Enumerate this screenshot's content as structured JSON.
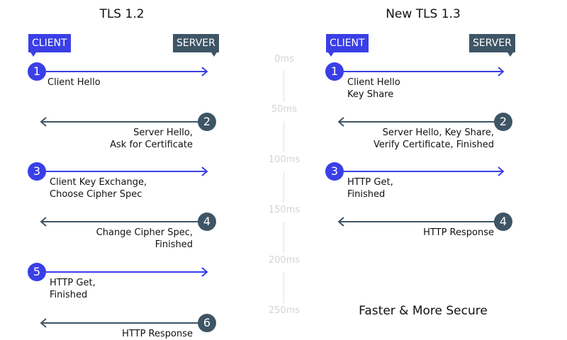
{
  "colors": {
    "client": "#3a3fe6",
    "server": "#3e5566",
    "timeline": "#d4d4d4"
  },
  "tls12": {
    "title": "TLS 1.2",
    "client_label": "CLIENT",
    "server_label": "SERVER",
    "messages": [
      {
        "step": "1",
        "direction": "client-to-server",
        "text": "Client Hello"
      },
      {
        "step": "2",
        "direction": "server-to-client",
        "text": "Server Hello,\nAsk for Certificate"
      },
      {
        "step": "3",
        "direction": "client-to-server",
        "text": "Client Key Exchange,\nChoose Cipher Spec"
      },
      {
        "step": "4",
        "direction": "server-to-client",
        "text": "Change Cipher Spec,\nFinished"
      },
      {
        "step": "5",
        "direction": "client-to-server",
        "text": "HTTP Get,\nFinished"
      },
      {
        "step": "6",
        "direction": "server-to-client",
        "text": "HTTP Response"
      }
    ]
  },
  "tls13": {
    "title": "New TLS 1.3",
    "client_label": "CLIENT",
    "server_label": "SERVER",
    "messages": [
      {
        "step": "1",
        "direction": "client-to-server",
        "text": "Client Hello\nKey Share"
      },
      {
        "step": "2",
        "direction": "server-to-client",
        "text": "Server Hello, Key Share,\nVerify Certificate, Finished"
      },
      {
        "step": "3",
        "direction": "client-to-server",
        "text": "HTTP Get,\nFinished"
      },
      {
        "step": "4",
        "direction": "server-to-client",
        "text": "HTTP Response"
      }
    ],
    "footer": "Faster & More Secure"
  },
  "timeline": [
    "0ms",
    "50ms",
    "100ms",
    "150ms",
    "200ms",
    "250ms"
  ]
}
